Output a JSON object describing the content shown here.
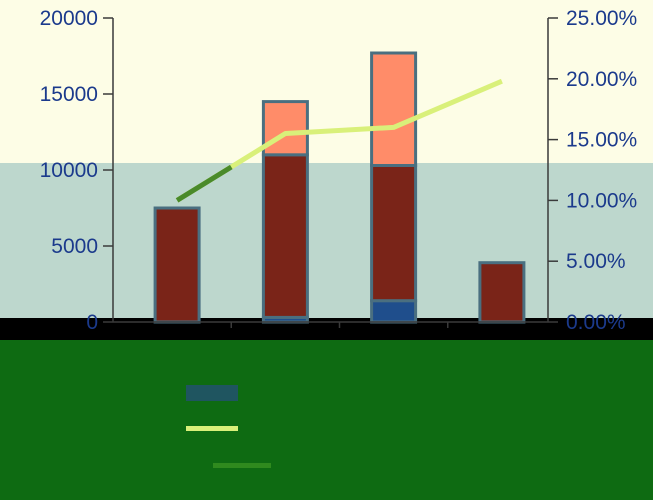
{
  "chart_data": {
    "type": "bar",
    "title": "",
    "xlabel": "",
    "ylabel": "",
    "categories": [
      "",
      "",
      "",
      ""
    ],
    "stacked": true,
    "series": [
      {
        "kind": "bar",
        "axis": "left",
        "color": "#1f4e8c",
        "values": [
          0,
          300,
          1400,
          0
        ]
      },
      {
        "kind": "bar",
        "axis": "left",
        "color": "#7a2418",
        "values": [
          7500,
          10700,
          8900,
          3900
        ]
      },
      {
        "kind": "bar",
        "axis": "left",
        "color": "#ff8c69",
        "values": [
          0,
          3500,
          7400,
          0
        ]
      },
      {
        "kind": "line",
        "axis": "right",
        "color": "#d9f07a",
        "values": [
          0.1,
          0.155,
          0.16,
          0.198
        ]
      }
    ],
    "left_axis": {
      "ylim": [
        0,
        20000
      ],
      "ticks": [
        "0",
        "5000",
        "10000",
        "15000",
        "20000"
      ]
    },
    "right_axis": {
      "ylim": [
        0,
        0.25
      ],
      "ticks": [
        "0.00%",
        "5.00%",
        "10.00%",
        "15.00%",
        "20.00%",
        "25.00%"
      ]
    },
    "legend_position": "bottom",
    "background_bands": [
      "#fdfde6",
      "#bdd7cd",
      "#0e6b12"
    ]
  }
}
